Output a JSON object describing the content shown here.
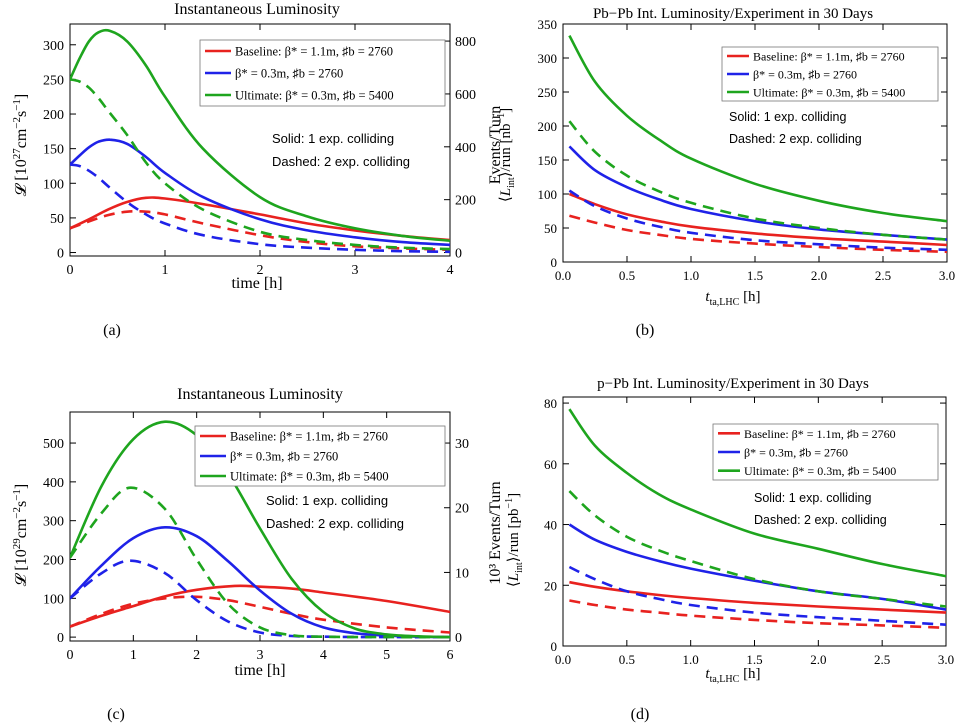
{
  "colors": {
    "red": "#e8221f",
    "blue": "#1f22e8",
    "green": "#1ea51e",
    "frame": "#000000"
  },
  "panels": [
    {
      "key": "a",
      "title": "Instantaneous Luminosity",
      "caption": "(a)",
      "ylabel_main": "𝓛 [10",
      "ylabel_sup": "27",
      "ylabel_mid": "cm",
      "ylabel_sup2": "−2",
      "ylabel_s": "s",
      "ylabel_sup3": "−1",
      "ylabel_end": "]",
      "y2label": "Events/Turn",
      "xlabel": "time [h]",
      "legend": [
        {
          "text": "Baseline: β* = 1.1m, ♯b = 2760",
          "color": "red"
        },
        {
          "text": "β* = 0.3m, ♯b = 2760",
          "color": "blue"
        },
        {
          "text": "Ultimate: β* = 0.3m, ♯b = 5400",
          "color": "green"
        }
      ],
      "note1": "Solid: 1 exp. colliding",
      "note2": "Dashed: 2 exp. colliding"
    },
    {
      "key": "b",
      "title": "Pb−Pb Int. Luminosity/Experiment in 30 Days",
      "caption": "(b)",
      "ylabel": "⟨L_int⟩/run [nb⁻¹]",
      "xlabel": "t_ta,LHC [h]",
      "legend": [
        {
          "text": "Baseline: β* = 1.1m, ♯b = 2760",
          "color": "red"
        },
        {
          "text": "β* = 0.3m, ♯b = 2760",
          "color": "blue"
        },
        {
          "text": "Ultimate: β* = 0.3m, ♯b = 5400",
          "color": "green"
        }
      ],
      "note1": "Solid: 1 exp. colliding",
      "note2": "Dashed: 2 exp. colliding"
    },
    {
      "key": "c",
      "title": "Instantaneous Luminosity",
      "caption": "(c)",
      "ylabel_main": "𝓛 [10",
      "ylabel_sup": "29",
      "ylabel_mid": "cm",
      "ylabel_sup2": "−2",
      "ylabel_s": "s",
      "ylabel_sup3": "−1",
      "ylabel_end": "]",
      "y2label": "10³ Events/Turn",
      "xlabel": "time [h]",
      "legend": [
        {
          "text": "Baseline: β* = 1.1m, ♯b = 2760",
          "color": "red"
        },
        {
          "text": "β* = 0.3m, ♯b = 2760",
          "color": "blue"
        },
        {
          "text": "Ultimate: β* = 0.3m, ♯b = 5400",
          "color": "green"
        }
      ],
      "note1": "Solid: 1 exp. colliding",
      "note2": "Dashed: 2 exp. colliding"
    },
    {
      "key": "d",
      "title": "p−Pb Int. Luminosity/Experiment in 30 Days",
      "caption": "(d)",
      "ylabel": "⟨L_int⟩/run [pb⁻¹]",
      "xlabel": "t_ta,LHC [h]",
      "legend": [
        {
          "text": "Baseline: β* = 1.1m, ♯b = 2760",
          "color": "red"
        },
        {
          "text": "β* = 0.3m, ♯b = 2760",
          "color": "blue"
        },
        {
          "text": "Ultimate: β* = 0.3m, ♯b = 5400",
          "color": "green"
        }
      ],
      "note1": "Solid: 1 exp. colliding",
      "note2": "Dashed: 2 exp. colliding"
    }
  ],
  "chart_data": [
    {
      "id": "a",
      "type": "line",
      "title": "Instantaneous Luminosity",
      "xlabel": "time [h]",
      "ylabel": "L [10^27 cm^-2 s^-1]",
      "y2label": "Events/Turn",
      "xlim": [
        0,
        4
      ],
      "ylim": [
        -5,
        330
      ],
      "xticks": [
        0,
        1,
        2,
        3,
        4
      ],
      "yticks": [
        0,
        50,
        100,
        150,
        200,
        250,
        300
      ],
      "y2ticks": [
        0,
        200,
        400,
        600,
        800
      ],
      "y2_per_y": 2.62,
      "grid": false,
      "legend_position": "top-right",
      "series": [
        {
          "name": "Baseline: β* = 1.1m, ♯b = 2760",
          "color": "red",
          "dash": false,
          "x": [
            0,
            0.2,
            0.4,
            0.6,
            0.8,
            1.0,
            1.4,
            2.0,
            2.5,
            3.0,
            3.5,
            4.0
          ],
          "y": [
            35,
            48,
            62,
            73,
            79,
            78,
            70,
            55,
            42,
            32,
            24,
            18
          ]
        },
        {
          "name": "Baseline: β* = 1.1m, ♯b = 2760",
          "color": "red",
          "dash": true,
          "x": [
            0,
            0.2,
            0.4,
            0.6,
            0.8,
            1.0,
            1.4,
            2.0,
            2.5,
            3.0,
            3.5,
            4.0
          ],
          "y": [
            35,
            45,
            54,
            59,
            59,
            55,
            42,
            25,
            15,
            9,
            6,
            4
          ]
        },
        {
          "name": "β* = 0.3m, ♯b = 2760",
          "color": "blue",
          "dash": false,
          "x": [
            0,
            0.1,
            0.2,
            0.3,
            0.42,
            0.6,
            0.8,
            1.0,
            1.4,
            2.0,
            2.5,
            3.0,
            3.5,
            4.0
          ],
          "y": [
            127,
            140,
            152,
            160,
            163,
            157,
            138,
            115,
            80,
            48,
            32,
            22,
            15,
            11
          ]
        },
        {
          "name": "β* = 0.3m, ♯b = 2760",
          "color": "blue",
          "dash": true,
          "x": [
            0,
            0.1,
            0.2,
            0.3,
            0.4,
            0.6,
            0.8,
            1.0,
            1.4,
            2.0,
            2.5,
            3.0,
            3.5,
            4.0
          ],
          "y": [
            127,
            125,
            118,
            108,
            96,
            73,
            55,
            42,
            25,
            12,
            7,
            4,
            2,
            1
          ]
        },
        {
          "name": "Ultimate: β* = 0.3m, ♯b = 5400",
          "color": "green",
          "dash": false,
          "x": [
            0,
            0.1,
            0.2,
            0.3,
            0.42,
            0.6,
            0.8,
            1.0,
            1.4,
            2.0,
            2.5,
            3.0,
            3.5,
            4.0
          ],
          "y": [
            250,
            280,
            305,
            318,
            320,
            305,
            270,
            225,
            150,
            80,
            52,
            35,
            24,
            17
          ]
        },
        {
          "name": "Ultimate: β* = 0.3m, ♯b = 5400",
          "color": "green",
          "dash": true,
          "x": [
            0,
            0.1,
            0.2,
            0.3,
            0.4,
            0.6,
            0.8,
            1.0,
            1.4,
            2.0,
            2.5,
            3.0,
            3.5,
            4.0
          ],
          "y": [
            250,
            247,
            238,
            223,
            205,
            170,
            130,
            100,
            62,
            30,
            18,
            11,
            7,
            5
          ]
        }
      ]
    },
    {
      "id": "b",
      "type": "line",
      "title": "Pb−Pb Int. Luminosity/Experiment in 30 Days",
      "xlabel": "t_ta,LHC [h]",
      "ylabel": "⟨L_int⟩/run [nb^-1]",
      "xlim": [
        0,
        3
      ],
      "ylim": [
        0,
        350
      ],
      "xticks": [
        0.0,
        0.5,
        1.0,
        1.5,
        2.0,
        2.5,
        3.0
      ],
      "yticks": [
        0,
        50,
        100,
        150,
        200,
        250,
        300,
        350
      ],
      "grid": false,
      "legend_position": "top-right",
      "series": [
        {
          "name": "Baseline: β* = 1.1m, ♯b = 2760",
          "color": "red",
          "dash": false,
          "x": [
            0.05,
            0.25,
            0.5,
            0.75,
            1.0,
            1.5,
            2.0,
            2.5,
            3.0
          ],
          "y": [
            100,
            85,
            70,
            60,
            52,
            42,
            35,
            30,
            25
          ]
        },
        {
          "name": "Baseline: β* = 1.1m, ♯b = 2760",
          "color": "red",
          "dash": true,
          "x": [
            0.05,
            0.25,
            0.5,
            0.75,
            1.0,
            1.5,
            2.0,
            2.5,
            3.0
          ],
          "y": [
            68,
            58,
            47,
            40,
            34,
            27,
            22,
            18,
            15
          ]
        },
        {
          "name": "β* = 0.3m, ♯b = 2760",
          "color": "blue",
          "dash": false,
          "x": [
            0.05,
            0.25,
            0.5,
            0.75,
            1.0,
            1.5,
            2.0,
            2.5,
            3.0
          ],
          "y": [
            170,
            135,
            110,
            92,
            78,
            60,
            48,
            40,
            33
          ]
        },
        {
          "name": "β* = 0.3m, ♯b = 2760",
          "color": "blue",
          "dash": true,
          "x": [
            0.05,
            0.25,
            0.5,
            0.75,
            1.0,
            1.5,
            2.0,
            2.5,
            3.0
          ],
          "y": [
            105,
            82,
            64,
            52,
            43,
            32,
            26,
            21,
            18
          ]
        },
        {
          "name": "Ultimate: β* = 0.3m, ♯b = 5400",
          "color": "green",
          "dash": false,
          "x": [
            0.05,
            0.25,
            0.5,
            0.75,
            1.0,
            1.5,
            2.0,
            2.5,
            3.0
          ],
          "y": [
            333,
            265,
            215,
            180,
            152,
            115,
            90,
            72,
            60
          ]
        },
        {
          "name": "Ultimate: β* = 0.3m, ♯b = 5400",
          "color": "green",
          "dash": true,
          "x": [
            0.05,
            0.25,
            0.5,
            0.75,
            1.0,
            1.5,
            2.0,
            2.5,
            3.0
          ],
          "y": [
            207,
            162,
            127,
            104,
            87,
            64,
            50,
            40,
            33
          ]
        }
      ]
    },
    {
      "id": "c",
      "type": "line",
      "title": "Instantaneous Luminosity",
      "xlabel": "time [h]",
      "ylabel": "L [10^29 cm^-2 s^-1]",
      "y2label": "10^3 Events/Turn",
      "xlim": [
        0,
        6
      ],
      "ylim": [
        -10,
        580
      ],
      "xticks": [
        0,
        1,
        2,
        3,
        4,
        5,
        6
      ],
      "yticks": [
        0,
        100,
        200,
        300,
        400,
        500
      ],
      "y2ticks": [
        0,
        10,
        20,
        30
      ],
      "y2_per_y": 0.06,
      "grid": false,
      "legend_position": "top-right",
      "series": [
        {
          "name": "Baseline: β* = 1.1m, ♯b = 2760",
          "color": "red",
          "dash": false,
          "x": [
            0,
            0.5,
            1.0,
            1.5,
            2.0,
            2.6,
            3.0,
            3.5,
            4.0,
            5.0,
            6.0
          ],
          "y": [
            27,
            55,
            80,
            105,
            122,
            132,
            130,
            125,
            115,
            93,
            65
          ]
        },
        {
          "name": "Baseline: β* = 1.1m, ♯b = 2760",
          "color": "red",
          "dash": true,
          "x": [
            0,
            0.5,
            1.0,
            1.5,
            2.0,
            2.5,
            3.0,
            3.5,
            4.0,
            5.0,
            6.0
          ],
          "y": [
            27,
            60,
            86,
            100,
            104,
            95,
            78,
            60,
            45,
            25,
            12
          ]
        },
        {
          "name": "β* = 0.3m, ♯b = 2760",
          "color": "blue",
          "dash": false,
          "x": [
            0,
            0.5,
            1.0,
            1.5,
            2.0,
            2.5,
            3.0,
            3.5,
            4.0,
            4.5,
            5.0,
            5.5,
            6.0
          ],
          "y": [
            100,
            185,
            255,
            283,
            260,
            195,
            120,
            60,
            25,
            10,
            4,
            1,
            0
          ]
        },
        {
          "name": "β* = 0.3m, ♯b = 2760",
          "color": "blue",
          "dash": true,
          "x": [
            0,
            0.5,
            0.95,
            1.5,
            2.0,
            2.5,
            3.0,
            3.5,
            4.0,
            5.0,
            6.0
          ],
          "y": [
            100,
            165,
            197,
            165,
            95,
            40,
            12,
            3,
            1,
            0,
            0
          ]
        },
        {
          "name": "Ultimate: β* = 0.3m, ♯b = 5400",
          "color": "green",
          "dash": false,
          "x": [
            0,
            0.5,
            1.0,
            1.5,
            2.0,
            2.5,
            3.0,
            3.5,
            4.0,
            4.5,
            5.0,
            5.5,
            6.0
          ],
          "y": [
            205,
            390,
            510,
            555,
            520,
            420,
            280,
            150,
            65,
            22,
            7,
            2,
            0
          ]
        },
        {
          "name": "Ultimate: β* = 0.3m, ♯b = 5400",
          "color": "green",
          "dash": true,
          "x": [
            0,
            0.5,
            0.95,
            1.5,
            2.0,
            2.5,
            3.0,
            3.5,
            4.0,
            5.0,
            6.0
          ],
          "y": [
            205,
            320,
            385,
            330,
            200,
            85,
            25,
            5,
            1,
            0,
            0
          ]
        }
      ]
    },
    {
      "id": "d",
      "type": "line",
      "title": "p−Pb Int. Luminosity/Experiment in 30 Days",
      "xlabel": "t_ta,LHC [h]",
      "ylabel": "⟨L_int⟩/run [pb^-1]",
      "xlim": [
        0,
        3
      ],
      "ylim": [
        0,
        82
      ],
      "xticks": [
        0.0,
        0.5,
        1.0,
        1.5,
        2.0,
        2.5,
        3.0
      ],
      "yticks": [
        0,
        20,
        40,
        60,
        80
      ],
      "grid": false,
      "legend_position": "top-right",
      "series": [
        {
          "name": "Baseline: β* = 1.1m, ♯b = 2760",
          "color": "red",
          "dash": false,
          "x": [
            0.05,
            0.25,
            0.5,
            0.75,
            1.0,
            1.5,
            2.0,
            2.5,
            3.0
          ],
          "y": [
            21,
            19.5,
            18,
            16.8,
            15.8,
            14.2,
            13,
            12,
            11
          ]
        },
        {
          "name": "Baseline: β* = 1.1m, ♯b = 2760",
          "color": "red",
          "dash": true,
          "x": [
            0.05,
            0.25,
            0.5,
            0.75,
            1.0,
            1.5,
            2.0,
            2.5,
            3.0
          ],
          "y": [
            15,
            13.5,
            12,
            11,
            10,
            8.6,
            7.5,
            6.8,
            6
          ]
        },
        {
          "name": "β* = 0.3m, ♯b = 2760",
          "color": "blue",
          "dash": false,
          "x": [
            0.05,
            0.25,
            0.5,
            0.75,
            1.0,
            1.5,
            2.0,
            2.5,
            3.0
          ],
          "y": [
            40,
            35,
            31,
            28,
            25.5,
            21.5,
            18,
            15.5,
            12
          ]
        },
        {
          "name": "β* = 0.3m, ♯b = 2760",
          "color": "blue",
          "dash": true,
          "x": [
            0.05,
            0.25,
            0.5,
            0.75,
            1.0,
            1.5,
            2.0,
            2.5,
            3.0
          ],
          "y": [
            26,
            22,
            18,
            15.5,
            13.5,
            11,
            9.5,
            8.3,
            7
          ]
        },
        {
          "name": "Ultimate: β* = 0.3m, ♯b = 5400",
          "color": "green",
          "dash": false,
          "x": [
            0.05,
            0.25,
            0.5,
            0.75,
            1.0,
            1.5,
            2.0,
            2.5,
            3.0
          ],
          "y": [
            78,
            66,
            57,
            50,
            45,
            37,
            32,
            27,
            23
          ]
        },
        {
          "name": "Ultimate: β* = 0.3m, ♯b = 5400",
          "color": "green",
          "dash": true,
          "x": [
            0.05,
            0.25,
            0.5,
            0.75,
            1.0,
            1.5,
            2.0,
            2.5,
            3.0
          ],
          "y": [
            51,
            43,
            36,
            31.5,
            28,
            22,
            18,
            15.5,
            13
          ]
        }
      ]
    }
  ]
}
